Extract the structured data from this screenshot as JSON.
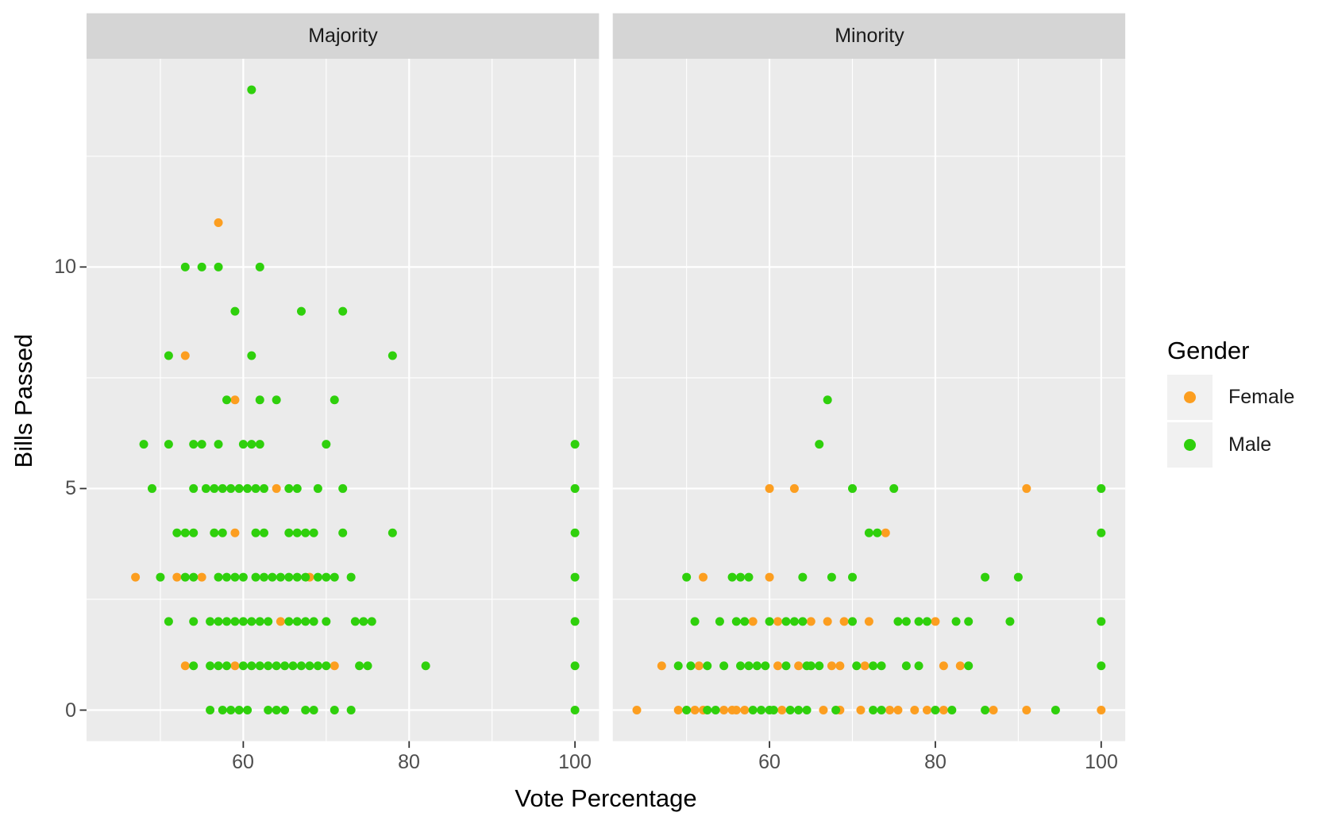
{
  "chart_data": {
    "type": "scatter",
    "xlabel": "Vote Percentage",
    "ylabel": "Bills Passed",
    "x_ticks": [
      "60",
      "80",
      "100"
    ],
    "y_ticks": [
      "0",
      "5",
      "10"
    ],
    "x_major_gridlines": [
      60,
      80,
      100
    ],
    "x_minor_gridlines": [
      50,
      70,
      90
    ],
    "y_major_gridlines": [
      0,
      5,
      10
    ],
    "y_minor_gridlines": [
      2.5,
      7.5,
      12.5
    ],
    "xlim": [
      41.1,
      102.9
    ],
    "ylim": [
      -0.7,
      14.7
    ],
    "grid": true,
    "panel_background": "#EBEBEB",
    "strip_background": "#D5D5D5",
    "gridline_color": "#FFFFFF",
    "tick_color": "#333333",
    "legend": {
      "title": "Gender",
      "position": "right",
      "entries": [
        {
          "label": "Female",
          "color": "#FC9E20"
        },
        {
          "label": "Male",
          "color": "#2FD00C"
        }
      ]
    },
    "facets": [
      {
        "label": "Majority",
        "series": [
          {
            "name": "Female",
            "color": "#FC9E20",
            "points": [
              [
                57,
                11
              ],
              [
                53,
                8
              ],
              [
                59,
                7
              ],
              [
                64,
                5
              ],
              [
                59,
                4
              ],
              [
                47,
                3
              ],
              [
                52,
                3
              ],
              [
                55,
                3
              ],
              [
                68,
                3
              ],
              [
                64.5,
                2
              ],
              [
                53,
                1
              ],
              [
                59,
                1
              ],
              [
                71,
                1
              ]
            ]
          },
          {
            "name": "Male",
            "color": "#2FD00C",
            "points": [
              [
                61,
                14
              ],
              [
                53,
                10
              ],
              [
                55,
                10
              ],
              [
                57,
                10
              ],
              [
                62,
                10
              ],
              [
                59,
                9
              ],
              [
                67,
                9
              ],
              [
                72,
                9
              ],
              [
                51,
                8
              ],
              [
                61,
                8
              ],
              [
                78,
                8
              ],
              [
                58,
                7
              ],
              [
                62,
                7
              ],
              [
                64,
                7
              ],
              [
                71,
                7
              ],
              [
                48,
                6
              ],
              [
                51,
                6
              ],
              [
                54,
                6
              ],
              [
                55,
                6
              ],
              [
                57,
                6
              ],
              [
                60,
                6
              ],
              [
                61,
                6
              ],
              [
                62,
                6
              ],
              [
                70,
                6
              ],
              [
                100,
                6
              ],
              [
                49,
                5
              ],
              [
                54,
                5
              ],
              [
                55.5,
                5
              ],
              [
                56.5,
                5
              ],
              [
                57.5,
                5
              ],
              [
                58.5,
                5
              ],
              [
                59.5,
                5
              ],
              [
                60.5,
                5
              ],
              [
                61.5,
                5
              ],
              [
                62.5,
                5
              ],
              [
                65.5,
                5
              ],
              [
                66.5,
                5
              ],
              [
                69,
                5
              ],
              [
                72,
                5
              ],
              [
                100,
                5
              ],
              [
                52,
                4
              ],
              [
                53,
                4
              ],
              [
                54,
                4
              ],
              [
                56.5,
                4
              ],
              [
                57.5,
                4
              ],
              [
                61.5,
                4
              ],
              [
                62.5,
                4
              ],
              [
                65.5,
                4
              ],
              [
                66.5,
                4
              ],
              [
                67.5,
                4
              ],
              [
                68.5,
                4
              ],
              [
                72,
                4
              ],
              [
                78,
                4
              ],
              [
                100,
                4
              ],
              [
                50,
                3
              ],
              [
                53,
                3
              ],
              [
                54,
                3
              ],
              [
                57,
                3
              ],
              [
                58,
                3
              ],
              [
                59,
                3
              ],
              [
                60,
                3
              ],
              [
                61.5,
                3
              ],
              [
                62.5,
                3
              ],
              [
                63.5,
                3
              ],
              [
                64.5,
                3
              ],
              [
                65.5,
                3
              ],
              [
                66.5,
                3
              ],
              [
                67.5,
                3
              ],
              [
                69,
                3
              ],
              [
                70,
                3
              ],
              [
                71,
                3
              ],
              [
                73,
                3
              ],
              [
                100,
                3
              ],
              [
                51,
                2
              ],
              [
                54,
                2
              ],
              [
                56,
                2
              ],
              [
                57,
                2
              ],
              [
                58,
                2
              ],
              [
                59,
                2
              ],
              [
                60,
                2
              ],
              [
                61,
                2
              ],
              [
                62,
                2
              ],
              [
                63,
                2
              ],
              [
                65.5,
                2
              ],
              [
                66.5,
                2
              ],
              [
                67.5,
                2
              ],
              [
                68.5,
                2
              ],
              [
                70,
                2
              ],
              [
                73.5,
                2
              ],
              [
                74.5,
                2
              ],
              [
                75.5,
                2
              ],
              [
                100,
                2
              ],
              [
                54,
                1
              ],
              [
                56,
                1
              ],
              [
                57,
                1
              ],
              [
                58,
                1
              ],
              [
                60,
                1
              ],
              [
                61,
                1
              ],
              [
                62,
                1
              ],
              [
                63,
                1
              ],
              [
                64,
                1
              ],
              [
                65,
                1
              ],
              [
                66,
                1
              ],
              [
                67,
                1
              ],
              [
                68,
                1
              ],
              [
                69,
                1
              ],
              [
                70,
                1
              ],
              [
                74,
                1
              ],
              [
                75,
                1
              ],
              [
                82,
                1
              ],
              [
                100,
                1
              ],
              [
                56,
                0
              ],
              [
                57.5,
                0
              ],
              [
                58.5,
                0
              ],
              [
                59.5,
                0
              ],
              [
                60.5,
                0
              ],
              [
                63,
                0
              ],
              [
                64,
                0
              ],
              [
                65,
                0
              ],
              [
                67.5,
                0
              ],
              [
                68.5,
                0
              ],
              [
                71,
                0
              ],
              [
                73,
                0
              ],
              [
                100,
                0
              ]
            ]
          }
        ]
      },
      {
        "label": "Minority",
        "series": [
          {
            "name": "Female",
            "color": "#FC9E20",
            "points": [
              [
                60,
                5
              ],
              [
                63,
                5
              ],
              [
                91,
                5
              ],
              [
                74,
                4
              ],
              [
                52,
                3
              ],
              [
                60,
                3
              ],
              [
                58,
                2
              ],
              [
                61,
                2
              ],
              [
                65,
                2
              ],
              [
                67,
                2
              ],
              [
                69,
                2
              ],
              [
                72,
                2
              ],
              [
                80,
                2
              ],
              [
                47,
                1
              ],
              [
                51.5,
                1
              ],
              [
                61,
                1
              ],
              [
                63.5,
                1
              ],
              [
                67.5,
                1
              ],
              [
                68.5,
                1
              ],
              [
                71.5,
                1
              ],
              [
                81,
                1
              ],
              [
                83,
                1
              ],
              [
                44,
                0
              ],
              [
                49,
                0
              ],
              [
                51,
                0
              ],
              [
                52,
                0
              ],
              [
                54.5,
                0
              ],
              [
                55.5,
                0
              ],
              [
                56,
                0
              ],
              [
                57,
                0
              ],
              [
                61.5,
                0
              ],
              [
                66.5,
                0
              ],
              [
                68.5,
                0
              ],
              [
                71,
                0
              ],
              [
                74.5,
                0
              ],
              [
                75.5,
                0
              ],
              [
                77.5,
                0
              ],
              [
                79,
                0
              ],
              [
                81,
                0
              ],
              [
                87,
                0
              ],
              [
                91,
                0
              ],
              [
                100,
                0
              ]
            ]
          },
          {
            "name": "Male",
            "color": "#2FD00C",
            "points": [
              [
                67,
                7
              ],
              [
                66,
                6
              ],
              [
                70,
                5
              ],
              [
                75,
                5
              ],
              [
                100,
                5
              ],
              [
                72,
                4
              ],
              [
                73,
                4
              ],
              [
                100,
                4
              ],
              [
                50,
                3
              ],
              [
                55.5,
                3
              ],
              [
                56.5,
                3
              ],
              [
                57.5,
                3
              ],
              [
                64,
                3
              ],
              [
                67.5,
                3
              ],
              [
                70,
                3
              ],
              [
                86,
                3
              ],
              [
                90,
                3
              ],
              [
                51,
                2
              ],
              [
                54,
                2
              ],
              [
                56,
                2
              ],
              [
                57,
                2
              ],
              [
                60,
                2
              ],
              [
                62,
                2
              ],
              [
                63,
                2
              ],
              [
                64,
                2
              ],
              [
                70,
                2
              ],
              [
                75.5,
                2
              ],
              [
                76.5,
                2
              ],
              [
                78,
                2
              ],
              [
                79,
                2
              ],
              [
                82.5,
                2
              ],
              [
                84,
                2
              ],
              [
                89,
                2
              ],
              [
                100,
                2
              ],
              [
                49,
                1
              ],
              [
                50.5,
                1
              ],
              [
                52.5,
                1
              ],
              [
                54.5,
                1
              ],
              [
                56.5,
                1
              ],
              [
                57.5,
                1
              ],
              [
                58.5,
                1
              ],
              [
                59.5,
                1
              ],
              [
                62,
                1
              ],
              [
                64.5,
                1
              ],
              [
                65,
                1
              ],
              [
                66,
                1
              ],
              [
                70.5,
                1
              ],
              [
                72.5,
                1
              ],
              [
                73.5,
                1
              ],
              [
                76.5,
                1
              ],
              [
                78,
                1
              ],
              [
                84,
                1
              ],
              [
                100,
                1
              ],
              [
                50,
                0
              ],
              [
                52.5,
                0
              ],
              [
                53.5,
                0
              ],
              [
                58,
                0
              ],
              [
                59,
                0
              ],
              [
                60,
                0
              ],
              [
                60.5,
                0
              ],
              [
                62.5,
                0
              ],
              [
                63.5,
                0
              ],
              [
                64.5,
                0
              ],
              [
                68,
                0
              ],
              [
                72.5,
                0
              ],
              [
                73.5,
                0
              ],
              [
                80,
                0
              ],
              [
                82,
                0
              ],
              [
                86,
                0
              ],
              [
                94.5,
                0
              ]
            ]
          }
        ]
      }
    ]
  }
}
